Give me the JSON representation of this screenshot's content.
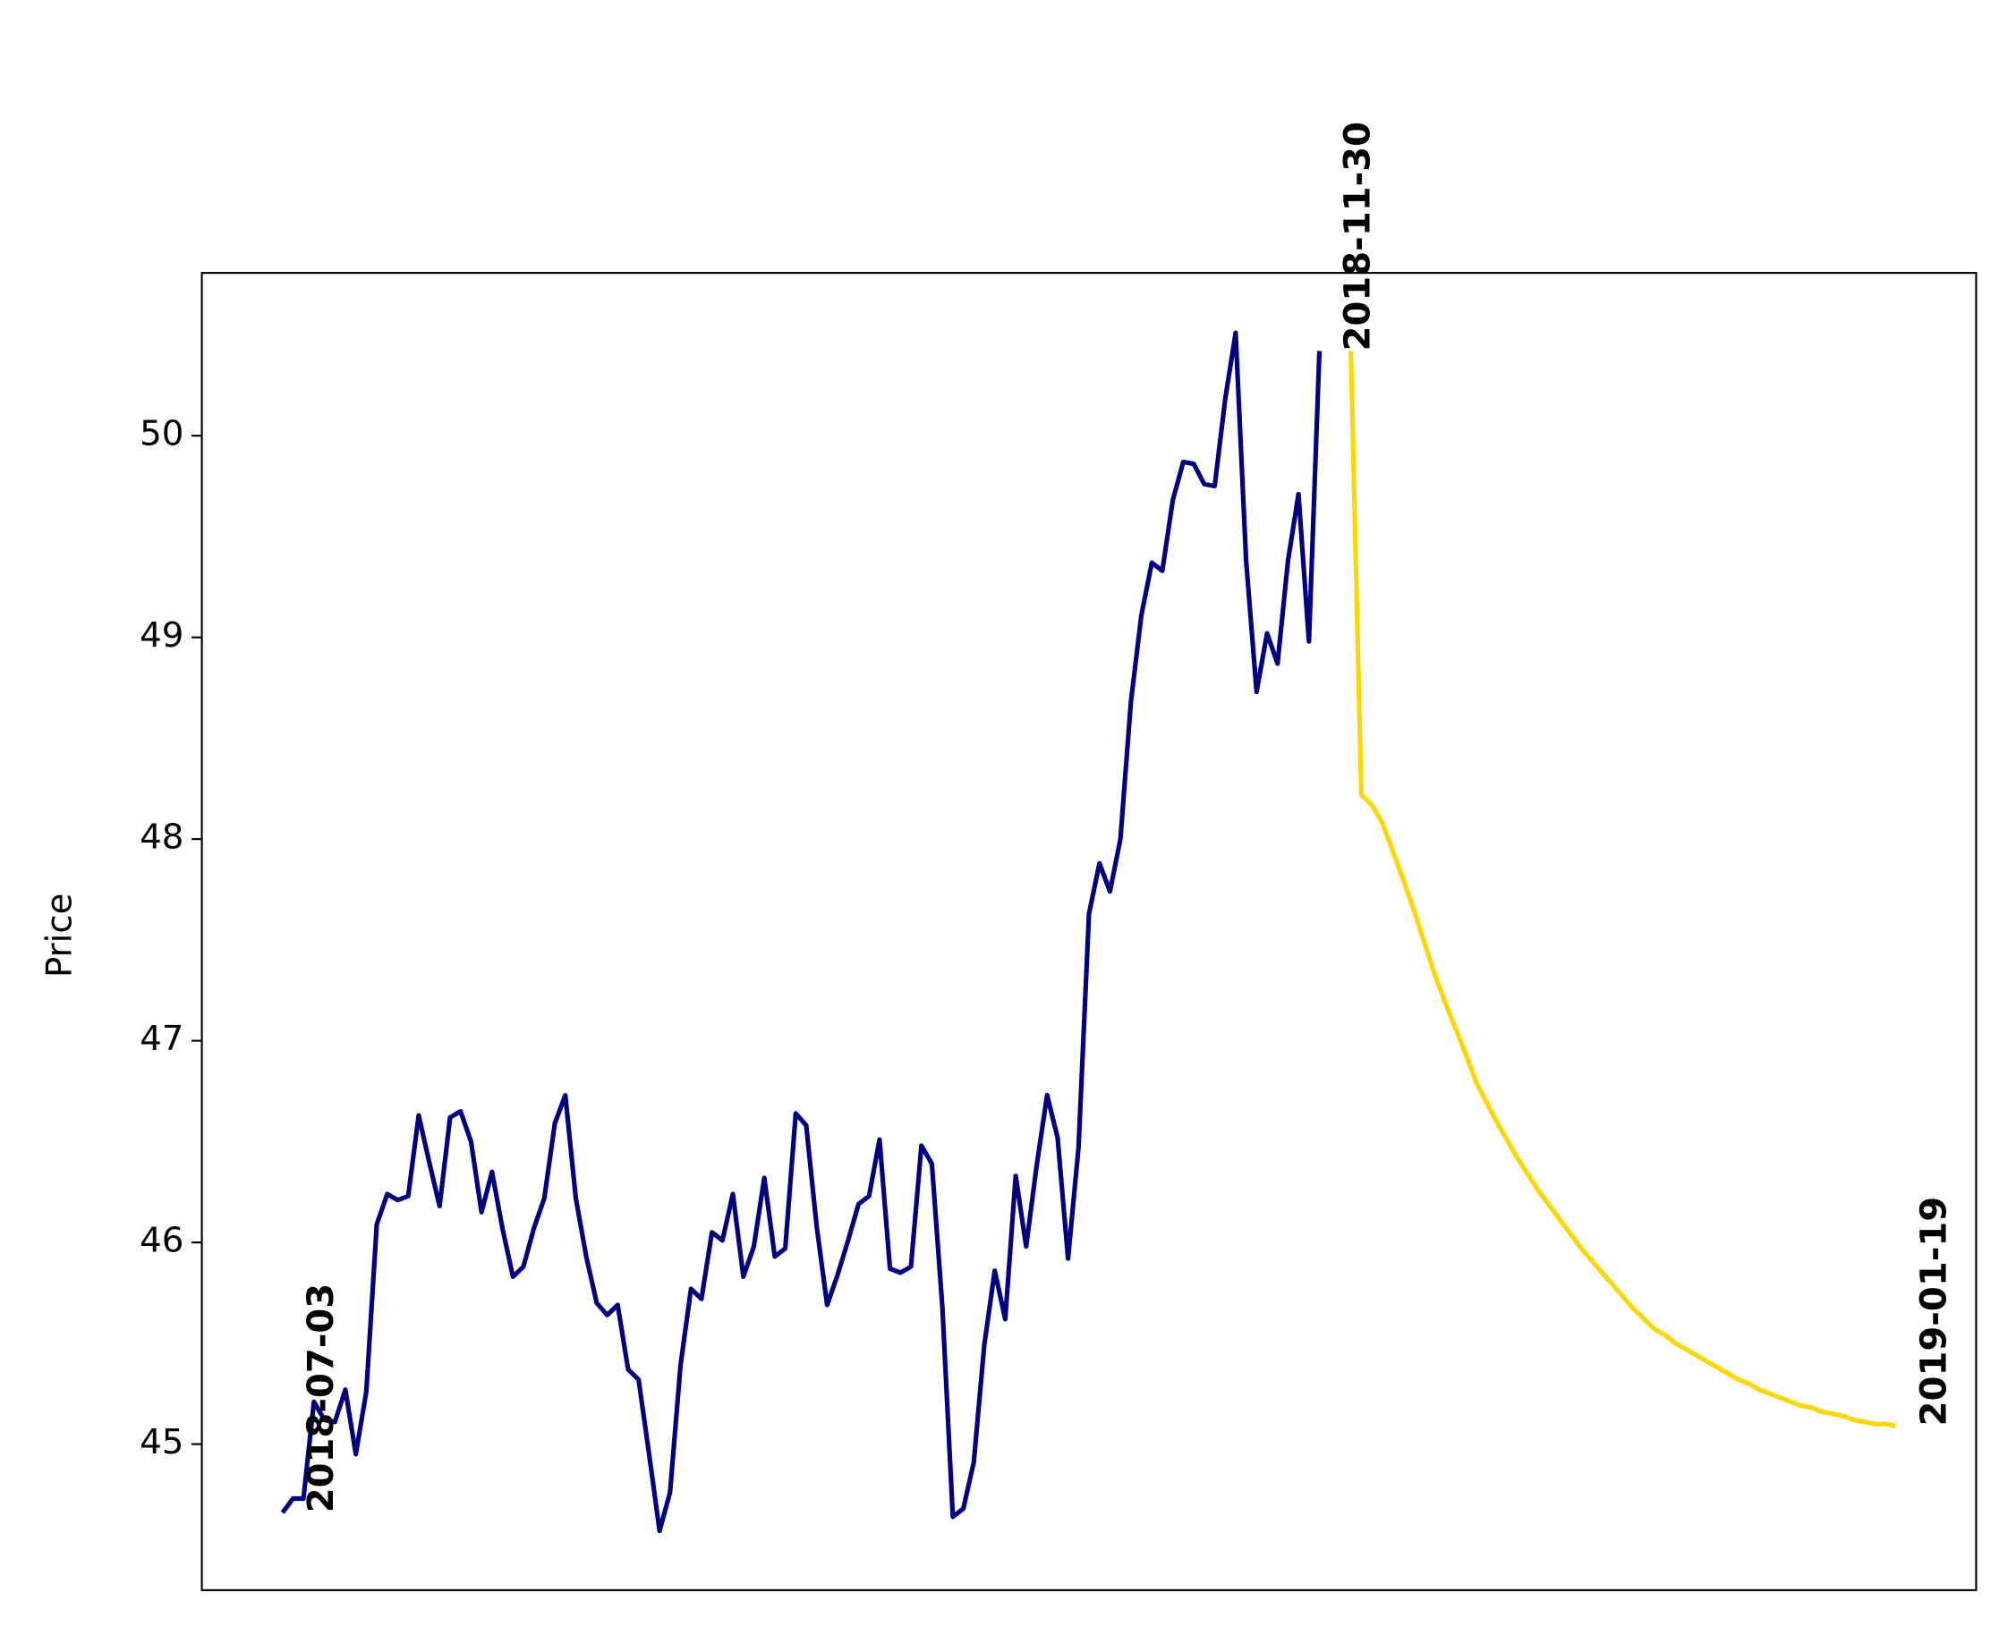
{
  "chart_data": {
    "type": "line",
    "ylabel": "Price",
    "xlim": [
      -7.7,
      161.7
    ],
    "ylim": [
      44.276,
      50.807
    ],
    "yticks": [
      45,
      46,
      47,
      48,
      49,
      50
    ],
    "annotations": [
      "2018-07-03",
      "2018-11-30",
      "2019-01-19"
    ],
    "series": [
      {
        "color": "#000080",
        "values": [
          44.66,
          44.73,
          44.73,
          45.21,
          45.12,
          45.11,
          45.27,
          44.95,
          45.26,
          46.09,
          46.24,
          46.21,
          46.23,
          46.63,
          46.4,
          46.18,
          46.62,
          46.65,
          46.5,
          46.15,
          46.35,
          46.07,
          45.83,
          45.88,
          46.07,
          46.22,
          46.59,
          46.73,
          46.22,
          45.93,
          45.7,
          45.64,
          45.69,
          45.37,
          45.32,
          44.95,
          44.57,
          44.76,
          45.39,
          45.77,
          45.72,
          46.05,
          46.01,
          46.24,
          45.83,
          45.98,
          46.32,
          45.93,
          45.97,
          46.64,
          46.58,
          46.08,
          45.69,
          45.84,
          46.01,
          46.19,
          46.23,
          46.51,
          45.87,
          45.85,
          45.88,
          46.48,
          46.39,
          45.68,
          44.64,
          44.68,
          44.91,
          45.49,
          45.86,
          45.62,
          46.33,
          45.98,
          46.38,
          46.73,
          46.52,
          45.92,
          46.47,
          47.63,
          47.88,
          47.74,
          48.0,
          48.68,
          49.11,
          49.37,
          49.33,
          49.68,
          49.87,
          49.86,
          49.76,
          49.75,
          50.18,
          50.51,
          49.38,
          48.73,
          49.02,
          48.87,
          49.38,
          49.71,
          48.98,
          50.42,
          null,
          null,
          null,
          null,
          null,
          null,
          null,
          null,
          null,
          null,
          null,
          null,
          null,
          null,
          null,
          null,
          null,
          null,
          null,
          null,
          null,
          null,
          null,
          null,
          null,
          null,
          null,
          null,
          null,
          null,
          null,
          null,
          null,
          null,
          null,
          null,
          null,
          null,
          null,
          null,
          null,
          null,
          null,
          null,
          null,
          null,
          null,
          null,
          null,
          null,
          null,
          null,
          null,
          null
        ]
      },
      {
        "color": "#ffd700",
        "values": [
          null,
          null,
          null,
          null,
          null,
          null,
          null,
          null,
          null,
          null,
          null,
          null,
          null,
          null,
          null,
          null,
          null,
          null,
          null,
          null,
          null,
          null,
          null,
          null,
          null,
          null,
          null,
          null,
          null,
          null,
          null,
          null,
          null,
          null,
          null,
          null,
          null,
          null,
          null,
          null,
          null,
          null,
          null,
          null,
          null,
          null,
          null,
          null,
          null,
          null,
          null,
          null,
          null,
          null,
          null,
          null,
          null,
          null,
          null,
          null,
          null,
          null,
          null,
          null,
          null,
          null,
          null,
          null,
          null,
          null,
          null,
          null,
          null,
          null,
          null,
          null,
          null,
          null,
          null,
          null,
          null,
          null,
          null,
          null,
          null,
          null,
          null,
          null,
          null,
          null,
          null,
          null,
          null,
          null,
          null,
          null,
          null,
          null,
          null,
          null,
          null,
          null,
          50.42,
          48.22,
          48.17,
          48.08,
          47.94,
          47.8,
          47.65,
          47.49,
          47.33,
          47.19,
          47.06,
          46.93,
          46.79,
          46.69,
          46.59,
          46.5,
          46.41,
          46.33,
          46.25,
          46.18,
          46.11,
          46.04,
          45.97,
          45.91,
          45.85,
          45.79,
          45.73,
          45.67,
          45.62,
          45.57,
          45.54,
          45.5,
          45.47,
          45.44,
          45.41,
          45.38,
          45.35,
          45.32,
          45.3,
          45.27,
          45.25,
          45.23,
          45.21,
          45.19,
          45.18,
          45.16,
          45.15,
          45.14,
          45.12,
          45.11,
          45.1,
          45.1,
          45.09
        ]
      }
    ]
  }
}
